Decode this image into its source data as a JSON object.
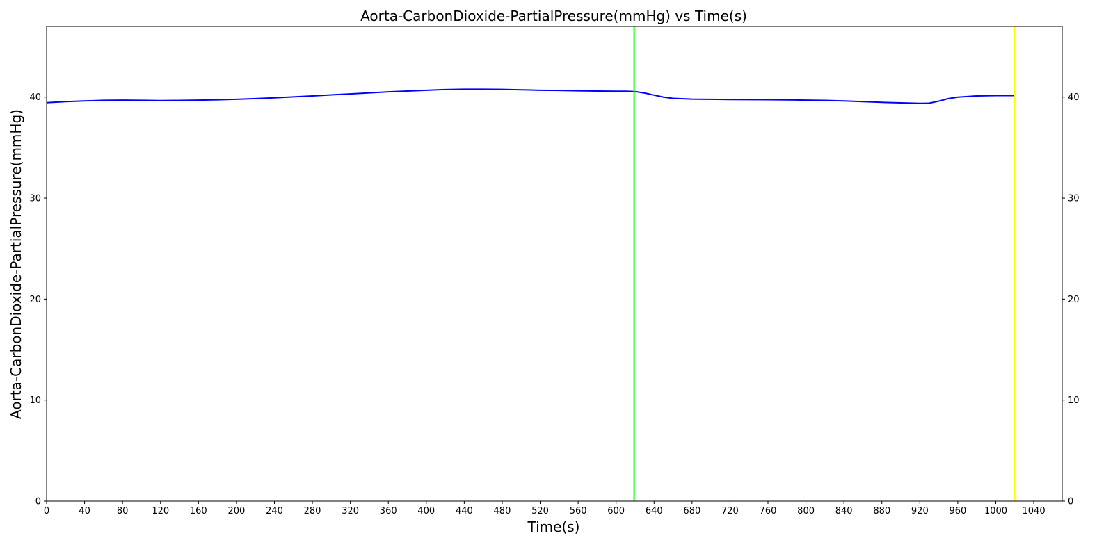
{
  "chart_data": {
    "type": "line",
    "title": "Aorta-CarbonDioxide-PartialPressure(mmHg) vs Time(s)",
    "xlabel": "Time(s)",
    "ylabel": "Aorta-CarbonDioxide-PartialPressure(mmHg)",
    "xlim": [
      0,
      1070
    ],
    "ylim": [
      0,
      47
    ],
    "xticks": [
      0,
      40,
      80,
      120,
      160,
      200,
      240,
      280,
      320,
      360,
      400,
      440,
      480,
      520,
      560,
      600,
      640,
      680,
      720,
      760,
      800,
      840,
      880,
      920,
      960,
      1000,
      1040
    ],
    "yticks": [
      0,
      10,
      20,
      30,
      40
    ],
    "right_axis_ticks": true,
    "grid": false,
    "series": [
      {
        "color": "#0000ff",
        "x": [
          0,
          20,
          40,
          60,
          80,
          100,
          120,
          140,
          160,
          180,
          200,
          220,
          240,
          260,
          280,
          300,
          320,
          340,
          360,
          380,
          400,
          420,
          440,
          460,
          480,
          500,
          520,
          540,
          560,
          580,
          600,
          610,
          620,
          630,
          640,
          650,
          660,
          680,
          700,
          720,
          740,
          760,
          780,
          800,
          820,
          840,
          860,
          880,
          900,
          920,
          930,
          940,
          950,
          960,
          980,
          1000,
          1020
        ],
        "y": [
          39.45,
          39.55,
          39.62,
          39.68,
          39.7,
          39.68,
          39.65,
          39.67,
          39.7,
          39.73,
          39.78,
          39.85,
          39.93,
          40.02,
          40.12,
          40.22,
          40.32,
          40.42,
          40.52,
          40.6,
          40.68,
          40.75,
          40.78,
          40.78,
          40.76,
          40.72,
          40.68,
          40.66,
          40.63,
          40.6,
          40.58,
          40.58,
          40.55,
          40.4,
          40.2,
          40.0,
          39.88,
          39.8,
          39.78,
          39.76,
          39.75,
          39.74,
          39.72,
          39.7,
          39.67,
          39.62,
          39.55,
          39.48,
          39.43,
          39.38,
          39.4,
          39.6,
          39.85,
          40.0,
          40.12,
          40.15,
          40.15
        ]
      }
    ],
    "vlines": [
      {
        "x": 619,
        "color": "#00ff00"
      },
      {
        "x": 1020,
        "color": "#ffff00"
      }
    ]
  }
}
